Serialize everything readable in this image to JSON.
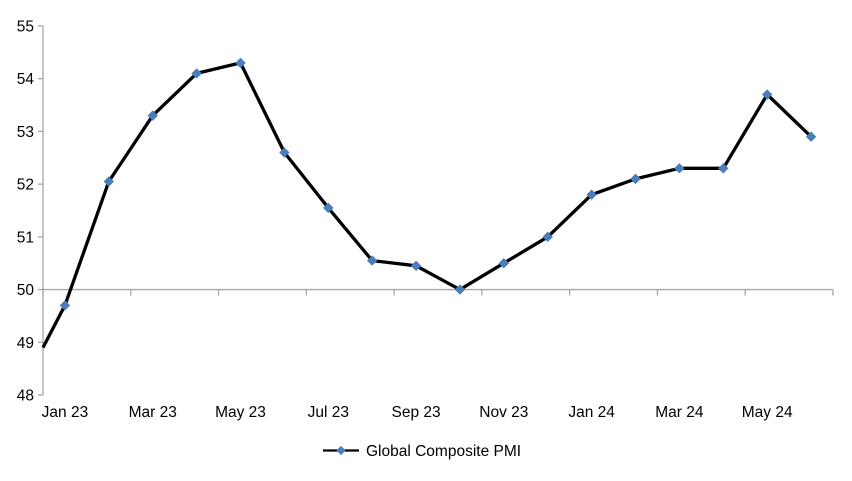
{
  "chart_data": {
    "type": "line",
    "title": "",
    "categories": [
      "Jan 23",
      "Feb 23",
      "Mar 23",
      "Apr 23",
      "May 23",
      "Jun 23",
      "Jul 23",
      "Aug 23",
      "Sep 23",
      "Oct 23",
      "Nov 23",
      "Dec 23",
      "Jan 24",
      "Feb 24",
      "Mar 24",
      "Apr 24",
      "May 24",
      "Jun 24"
    ],
    "series": [
      {
        "name": "Global Composite PMI",
        "values": [
          49.7,
          52.05,
          53.3,
          54.1,
          54.3,
          52.6,
          51.55,
          50.55,
          50.45,
          50.0,
          50.5,
          51.0,
          51.8,
          52.1,
          52.3,
          52.3,
          53.7,
          52.9
        ],
        "line_color": "#000000",
        "marker_color": "#4A7EBB",
        "marker_shape": "diamond"
      }
    ],
    "clipped_lead_in_value_at_left_axis": 48.9,
    "x_tick_labels": [
      "Jan 23",
      "Mar 23",
      "May 23",
      "Jul 23",
      "Sep 23",
      "Nov 23",
      "Jan 24",
      "Mar 24",
      "May 24"
    ],
    "y_tick_labels": [
      "55",
      "54",
      "53",
      "52",
      "51",
      "50",
      "49",
      "48"
    ],
    "y_ticks": [
      55,
      54,
      53,
      52,
      51,
      50,
      49,
      48
    ],
    "ylim": [
      48,
      55
    ],
    "xlabel": "",
    "ylabel": "",
    "category_axis_cross_value": 50,
    "grid": "off",
    "legend": {
      "label": "Global Composite PMI",
      "position": "bottom-center"
    },
    "colors": {
      "axis": "#A6A6A6",
      "tick_label": "#000000",
      "series_line": "#000000",
      "series_marker": "#4A7EBB",
      "background": "#FFFFFF"
    }
  }
}
